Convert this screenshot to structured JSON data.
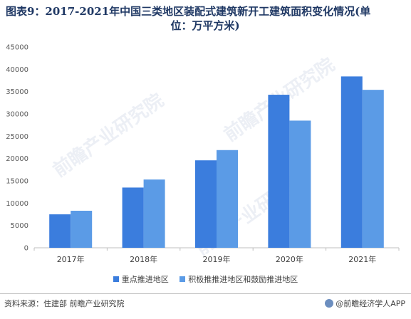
{
  "title_line1": "图表9：2017-2021年中国三类地区装配式建筑新开工建筑面积变化情况(单",
  "title_line2": "位：万平方米)",
  "source": "资料来源：住建部 前瞻产业研究院",
  "brand": "@前瞻经济学人APP",
  "watermark": "前瞻产业研究院",
  "colors": {
    "series1": "#3b7ddd",
    "series2": "#5b9be6",
    "title": "#1f3864"
  },
  "chart_data": {
    "type": "bar",
    "title": "图表9：2017-2021年中国三类地区装配式建筑新开工建筑面积变化情况(单位：万平方米)",
    "categories": [
      "2017年",
      "2018年",
      "2019年",
      "2020年",
      "2021年"
    ],
    "series": [
      {
        "name": "重点推进地区",
        "values": [
          7500,
          13500,
          19600,
          34300,
          38400
        ]
      },
      {
        "name": "积极推推进地区和鼓励推进地区",
        "values": [
          8300,
          15300,
          21900,
          28500,
          35400
        ]
      }
    ],
    "ylim": [
      0,
      45000
    ],
    "yticks": [
      0,
      5000,
      10000,
      15000,
      20000,
      25000,
      30000,
      35000,
      40000,
      45000
    ],
    "grid": false,
    "legend": "bottom"
  }
}
